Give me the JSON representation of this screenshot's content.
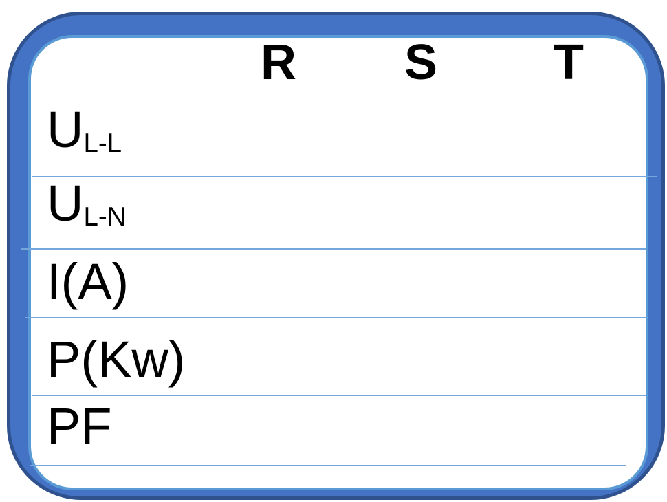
{
  "table": {
    "column_headers": [
      "R",
      "S",
      "T"
    ],
    "rows": [
      {
        "main": "U",
        "sub": "L-L"
      },
      {
        "main": "U",
        "sub": "L-N"
      },
      {
        "main": "I(A)",
        "sub": ""
      },
      {
        "main": "P(Kw)",
        "sub": ""
      },
      {
        "main": "PF",
        "sub": ""
      }
    ]
  },
  "colors": {
    "frame_fill": "#4472C4",
    "frame_outline": "#2F528F",
    "frame_inner_edge": "#5B9BD5",
    "divider": "#74A7DC",
    "text": "#000000",
    "background": "#FFFFFF"
  }
}
